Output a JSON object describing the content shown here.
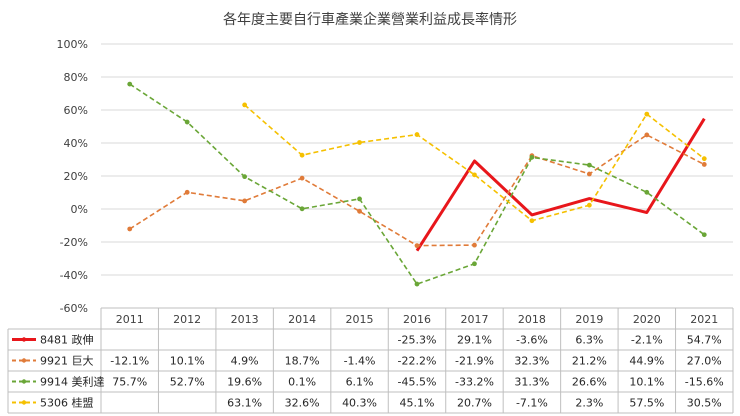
{
  "chart_data": {
    "type": "line",
    "title": "各年度主要自行車產業企業營業利益成長率情形",
    "x": [
      "2011",
      "2012",
      "2013",
      "2014",
      "2015",
      "2016",
      "2017",
      "2018",
      "2019",
      "2020",
      "2021"
    ],
    "ylim": [
      -60,
      100
    ],
    "yticks": [
      "100%",
      "80%",
      "60%",
      "40%",
      "20%",
      "0%",
      "-20%",
      "-40%",
      "-60%"
    ],
    "ytick_values": [
      100,
      80,
      60,
      40,
      20,
      0,
      -20,
      -40,
      -60
    ],
    "grid": true,
    "legend": "data-table",
    "series": [
      {
        "name": "8481 政伸",
        "color": "#e8161b",
        "style": "solid",
        "values": [
          null,
          null,
          null,
          null,
          null,
          -25.3,
          29.1,
          -3.6,
          6.3,
          -2.1,
          54.7
        ],
        "labels": [
          "",
          "",
          "",
          "",
          "",
          "-25.3%",
          "29.1%",
          "-3.6%",
          "6.3%",
          "-2.1%",
          "54.7%"
        ]
      },
      {
        "name": "9921 巨大",
        "color": "#e07b39",
        "style": "dashed",
        "values": [
          -12.1,
          10.1,
          4.9,
          18.7,
          -1.4,
          -22.2,
          -21.9,
          32.3,
          21.2,
          44.9,
          27.0
        ],
        "labels": [
          "-12.1%",
          "10.1%",
          "4.9%",
          "18.7%",
          "-1.4%",
          "-22.2%",
          "-21.9%",
          "32.3%",
          "21.2%",
          "44.9%",
          "27.0%"
        ]
      },
      {
        "name": "9914 美利達",
        "color": "#6aa637",
        "style": "dashed",
        "values": [
          75.7,
          52.7,
          19.6,
          0.1,
          6.1,
          -45.5,
          -33.2,
          31.3,
          26.6,
          10.1,
          -15.6
        ],
        "labels": [
          "75.7%",
          "52.7%",
          "19.6%",
          "0.1%",
          "6.1%",
          "-45.5%",
          "-33.2%",
          "31.3%",
          "26.6%",
          "10.1%",
          "-15.6%"
        ]
      },
      {
        "name": "5306 桂盟",
        "color": "#f5c000",
        "style": "dashed",
        "values": [
          null,
          null,
          63.1,
          32.6,
          40.3,
          45.1,
          20.7,
          -7.1,
          2.3,
          57.5,
          30.5
        ],
        "labels": [
          "",
          "",
          "63.1%",
          "32.6%",
          "40.3%",
          "45.1%",
          "20.7%",
          "-7.1%",
          "2.3%",
          "57.5%",
          "30.5%"
        ]
      }
    ]
  }
}
